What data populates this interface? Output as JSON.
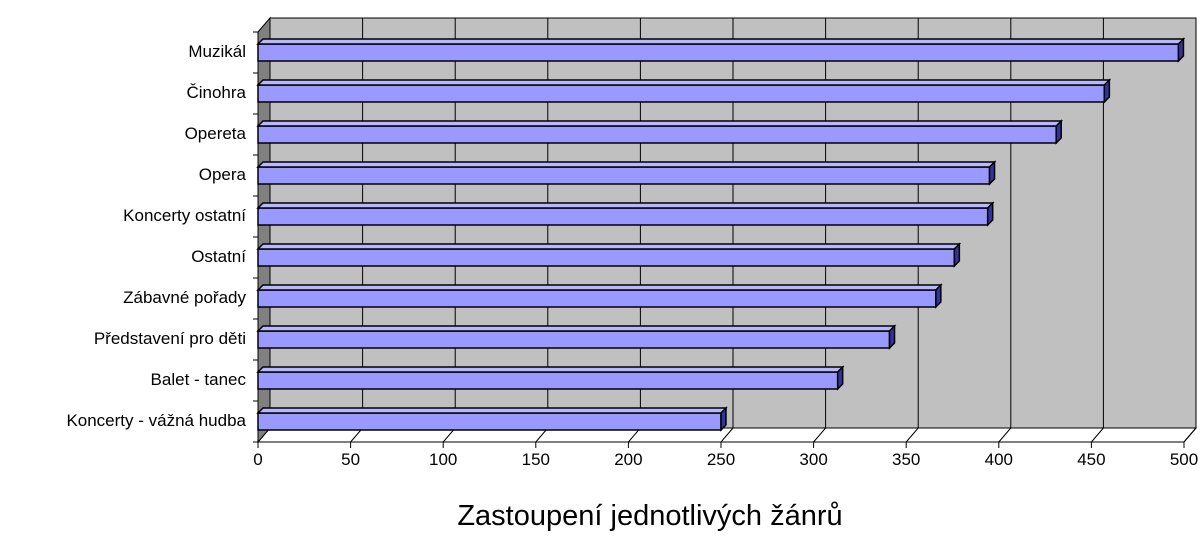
{
  "chart_data": {
    "type": "bar",
    "orientation": "horizontal",
    "style": "3d",
    "categories": [
      "Muzikál",
      "Činohra",
      "Opereta",
      "Opera",
      "Koncerty ostatní",
      "Ostatní",
      "Zábavné pořady",
      "Představení pro děti",
      "Balet - tanec",
      "Koncerty - vážná hudba"
    ],
    "values": [
      497,
      457,
      431,
      395,
      394,
      376,
      366,
      341,
      313,
      250
    ],
    "xlabel": "Zastoupení jednotlivých žánrů",
    "ylabel": "",
    "xlim": [
      0,
      500
    ],
    "xticks": [
      0,
      50,
      100,
      150,
      200,
      250,
      300,
      350,
      400,
      450,
      500
    ],
    "grid": "vertical",
    "legend": "none",
    "colors": {
      "bar_front": "#9999ff",
      "bar_top": "#b8b8ff",
      "bar_side": "#333399",
      "plot_wall": "#c0c0c0",
      "side_wall": "#808080",
      "gridline": "#000000"
    }
  }
}
